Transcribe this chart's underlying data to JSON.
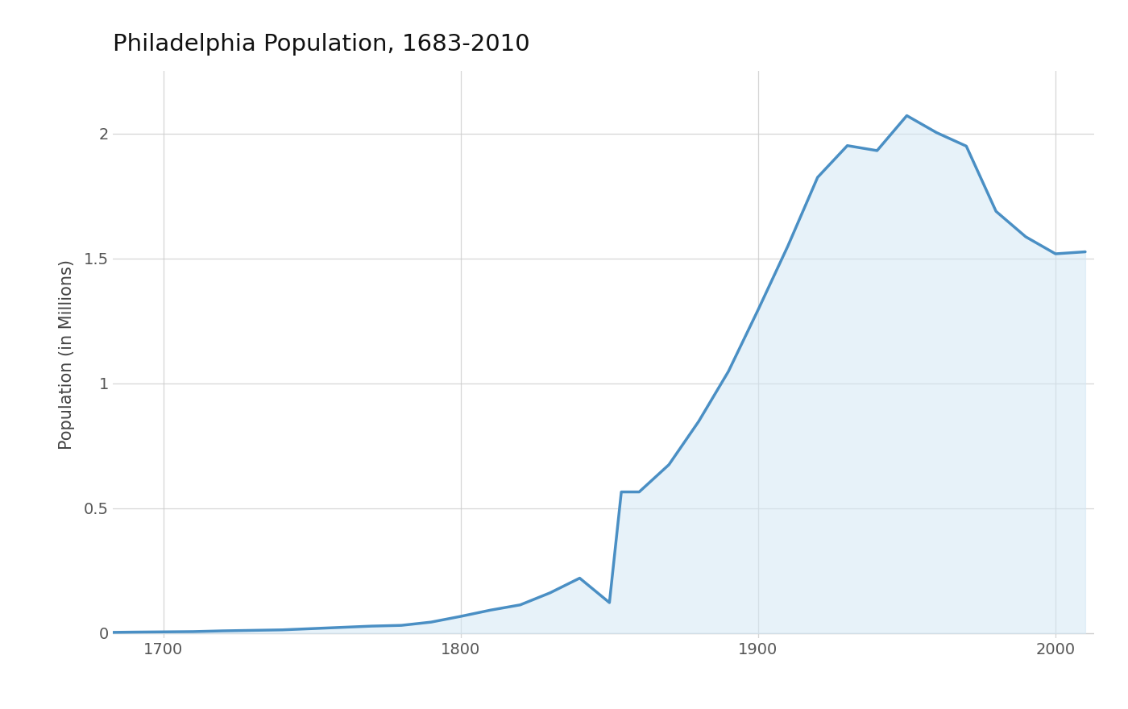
{
  "title": "Philadelphia Population, 1683-2010",
  "ylabel": "Population (in Millions)",
  "background_color": "#ffffff",
  "plot_bg_color": "#ffffff",
  "line_color": "#4a8fc4",
  "fill_color": "#d4e8f5",
  "fill_alpha": 0.55,
  "line_width": 2.5,
  "years": [
    1683,
    1690,
    1700,
    1710,
    1720,
    1730,
    1740,
    1750,
    1760,
    1770,
    1780,
    1790,
    1800,
    1810,
    1820,
    1830,
    1840,
    1850,
    1854,
    1860,
    1870,
    1880,
    1890,
    1900,
    1910,
    1920,
    1930,
    1940,
    1950,
    1960,
    1970,
    1980,
    1990,
    2000,
    2010
  ],
  "population_millions": [
    0.003,
    0.004,
    0.005,
    0.006,
    0.009,
    0.011,
    0.013,
    0.018,
    0.023,
    0.028,
    0.031,
    0.044,
    0.067,
    0.092,
    0.113,
    0.161,
    0.22,
    0.122,
    0.565,
    0.565,
    0.674,
    0.847,
    1.047,
    1.294,
    1.549,
    1.824,
    1.951,
    1.931,
    2.071,
    2.003,
    1.949,
    1.688,
    1.586,
    1.518,
    1.526
  ],
  "xlim": [
    1683,
    2013
  ],
  "ylim": [
    -0.02,
    2.25
  ],
  "yticks": [
    0.0,
    0.5,
    1.0,
    1.5,
    2.0
  ],
  "ytick_labels": [
    "0",
    "0.5",
    "1",
    "1.5",
    "2"
  ],
  "xticks": [
    1700,
    1800,
    1900,
    2000
  ],
  "title_fontsize": 21,
  "tick_fontsize": 14,
  "label_fontsize": 15,
  "grid_color": "#cccccc",
  "grid_alpha": 0.8,
  "grid_linewidth": 0.9
}
